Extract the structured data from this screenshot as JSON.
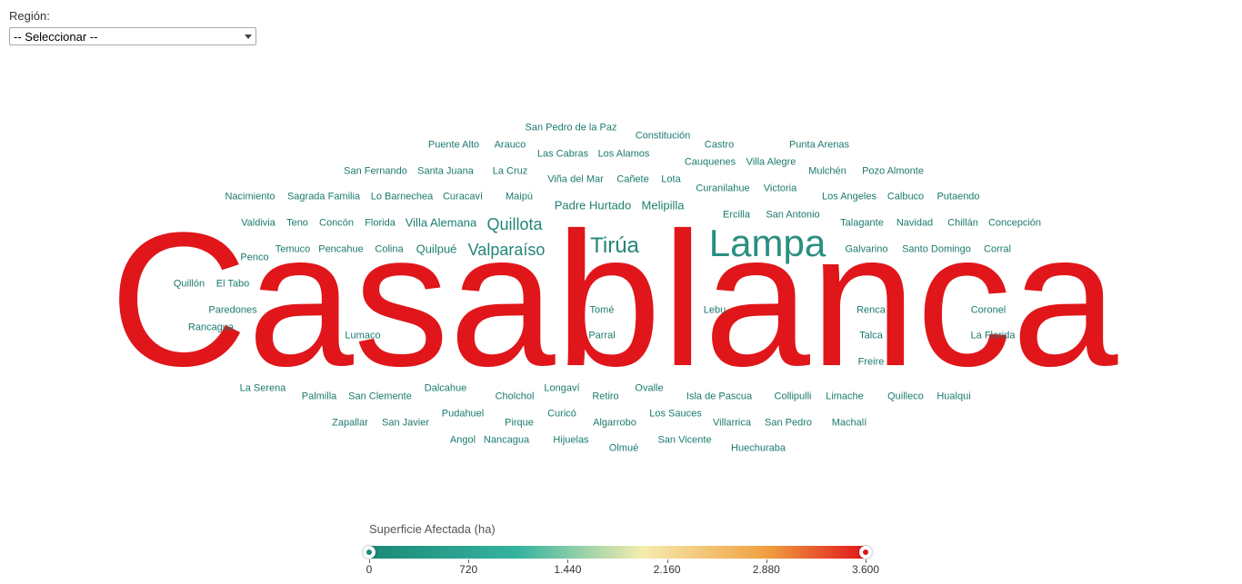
{
  "region_filter": {
    "label": "Región:",
    "selected": "-- Seleccionar --"
  },
  "colors": {
    "low": "#1b8a78",
    "mid_low": "#35b3a0",
    "mid": "#f5ecb0",
    "mid_high": "#f0a040",
    "high": "#e0161a"
  },
  "legend": {
    "title": "Superficie Afectada (ha)",
    "ticks": [
      "0",
      "720",
      "1.440",
      "2.160",
      "2.880",
      "3.600"
    ],
    "range": [
      0,
      3600
    ]
  },
  "words": [
    {
      "text": "Casablanca",
      "color": "#e0161a",
      "size": 210
    },
    {
      "text": "Lampa",
      "color": "#2a8f80",
      "size": 42
    },
    {
      "text": "Tirúa",
      "color": "#238676",
      "size": 24
    },
    {
      "text": "Quillota",
      "color": "#238676",
      "size": 18
    },
    {
      "text": "Valparaíso",
      "color": "#238676",
      "size": 18
    },
    {
      "text": "Padre Hurtado",
      "color": "#1e8070",
      "size": 13
    },
    {
      "text": "Melipilla",
      "color": "#1e8070",
      "size": 13
    },
    {
      "text": "Villa Alemana",
      "color": "#1e8070",
      "size": 13
    },
    {
      "text": "Quilpué",
      "color": "#1e8070",
      "size": 13
    },
    {
      "text": "San Pedro de la Paz",
      "color": "#1b7a6c",
      "size": 11
    },
    {
      "text": "Constitución",
      "color": "#1b7a6c",
      "size": 11
    },
    {
      "text": "Puente Alto",
      "color": "#1b7a6c",
      "size": 11
    },
    {
      "text": "Arauco",
      "color": "#1b7a6c",
      "size": 11
    },
    {
      "text": "Las Cabras",
      "color": "#1b7a6c",
      "size": 11
    },
    {
      "text": "Los Alamos",
      "color": "#1b7a6c",
      "size": 11
    },
    {
      "text": "Castro",
      "color": "#1b7a6c",
      "size": 11
    },
    {
      "text": "Punta Arenas",
      "color": "#1b7a6c",
      "size": 11
    },
    {
      "text": "Cauquenes",
      "color": "#1b7a6c",
      "size": 11
    },
    {
      "text": "Villa Alegre",
      "color": "#1b7a6c",
      "size": 11
    },
    {
      "text": "San Fernando",
      "color": "#1b7a6c",
      "size": 11
    },
    {
      "text": "Santa Juana",
      "color": "#1b7a6c",
      "size": 11
    },
    {
      "text": "La Cruz",
      "color": "#1b7a6c",
      "size": 11
    },
    {
      "text": "Viña del Mar",
      "color": "#1b7a6c",
      "size": 11
    },
    {
      "text": "Cañete",
      "color": "#1b7a6c",
      "size": 11
    },
    {
      "text": "Lota",
      "color": "#1b7a6c",
      "size": 11
    },
    {
      "text": "Mulchén",
      "color": "#1b7a6c",
      "size": 11
    },
    {
      "text": "Pozo Almonte",
      "color": "#1b7a6c",
      "size": 11
    },
    {
      "text": "Curanilahue",
      "color": "#1b7a6c",
      "size": 11
    },
    {
      "text": "Victoria",
      "color": "#1b7a6c",
      "size": 11
    },
    {
      "text": "Nacimiento",
      "color": "#1b7a6c",
      "size": 11
    },
    {
      "text": "Sagrada Familia",
      "color": "#1b7a6c",
      "size": 11
    },
    {
      "text": "Lo Barnechea",
      "color": "#1b7a6c",
      "size": 11
    },
    {
      "text": "Curacaví",
      "color": "#1b7a6c",
      "size": 11
    },
    {
      "text": "Maipú",
      "color": "#1b7a6c",
      "size": 11
    },
    {
      "text": "Los Angeles",
      "color": "#1b7a6c",
      "size": 11
    },
    {
      "text": "Calbuco",
      "color": "#1b7a6c",
      "size": 11
    },
    {
      "text": "Putaendo",
      "color": "#1b7a6c",
      "size": 11
    },
    {
      "text": "Ercilla",
      "color": "#1b7a6c",
      "size": 11
    },
    {
      "text": "San Antonio",
      "color": "#1b7a6c",
      "size": 11
    },
    {
      "text": "Valdivia",
      "color": "#1b7a6c",
      "size": 11
    },
    {
      "text": "Teno",
      "color": "#1b7a6c",
      "size": 11
    },
    {
      "text": "Concón",
      "color": "#1b7a6c",
      "size": 11
    },
    {
      "text": "Florida",
      "color": "#1b7a6c",
      "size": 11
    },
    {
      "text": "Talagante",
      "color": "#1b7a6c",
      "size": 11
    },
    {
      "text": "Navidad",
      "color": "#1b7a6c",
      "size": 11
    },
    {
      "text": "Chillán",
      "color": "#1b7a6c",
      "size": 11
    },
    {
      "text": "Concepción",
      "color": "#1b7a6c",
      "size": 11
    },
    {
      "text": "Temuco",
      "color": "#1b7a6c",
      "size": 11
    },
    {
      "text": "Pencahue",
      "color": "#1b7a6c",
      "size": 11
    },
    {
      "text": "Colina",
      "color": "#1b7a6c",
      "size": 11
    },
    {
      "text": "Galvarino",
      "color": "#1b7a6c",
      "size": 11
    },
    {
      "text": "Santo Domingo",
      "color": "#1b7a6c",
      "size": 11
    },
    {
      "text": "Corral",
      "color": "#1b7a6c",
      "size": 11
    },
    {
      "text": "Penco",
      "color": "#1b7a6c",
      "size": 11
    },
    {
      "text": "Quillón",
      "color": "#1b7a6c",
      "size": 11
    },
    {
      "text": "El Tabo",
      "color": "#1b7a6c",
      "size": 11
    },
    {
      "text": "Paredones",
      "color": "#1b7a6c",
      "size": 11
    },
    {
      "text": "Rancagua",
      "color": "#1b7a6c",
      "size": 11
    },
    {
      "text": "Tomé",
      "color": "#1b7a6c",
      "size": 11
    },
    {
      "text": "Lebu",
      "color": "#1b7a6c",
      "size": 11
    },
    {
      "text": "Renca",
      "color": "#1b7a6c",
      "size": 11
    },
    {
      "text": "Coronel",
      "color": "#1b7a6c",
      "size": 11
    },
    {
      "text": "Lumaco",
      "color": "#1b7a6c",
      "size": 11
    },
    {
      "text": "Parral",
      "color": "#1b7a6c",
      "size": 11
    },
    {
      "text": "Talca",
      "color": "#1b7a6c",
      "size": 11
    },
    {
      "text": "La Florida",
      "color": "#1b7a6c",
      "size": 11
    },
    {
      "text": "Freire",
      "color": "#1b7a6c",
      "size": 11
    },
    {
      "text": "La Serena",
      "color": "#1b7a6c",
      "size": 11
    },
    {
      "text": "Dalcahue",
      "color": "#1b7a6c",
      "size": 11
    },
    {
      "text": "Longaví",
      "color": "#1b7a6c",
      "size": 11
    },
    {
      "text": "Ovalle",
      "color": "#1b7a6c",
      "size": 11
    },
    {
      "text": "Palmilla",
      "color": "#1b7a6c",
      "size": 11
    },
    {
      "text": "San Clemente",
      "color": "#1b7a6c",
      "size": 11
    },
    {
      "text": "Cholchol",
      "color": "#1b7a6c",
      "size": 11
    },
    {
      "text": "Retiro",
      "color": "#1b7a6c",
      "size": 11
    },
    {
      "text": "Isla de Pascua",
      "color": "#1b7a6c",
      "size": 11
    },
    {
      "text": "Collipulli",
      "color": "#1b7a6c",
      "size": 11
    },
    {
      "text": "Limache",
      "color": "#1b7a6c",
      "size": 11
    },
    {
      "text": "Quilleco",
      "color": "#1b7a6c",
      "size": 11
    },
    {
      "text": "Hualqui",
      "color": "#1b7a6c",
      "size": 11
    },
    {
      "text": "Pudahuel",
      "color": "#1b7a6c",
      "size": 11
    },
    {
      "text": "Curicó",
      "color": "#1b7a6c",
      "size": 11
    },
    {
      "text": "Los Sauces",
      "color": "#1b7a6c",
      "size": 11
    },
    {
      "text": "Zapallar",
      "color": "#1b7a6c",
      "size": 11
    },
    {
      "text": "San Javier",
      "color": "#1b7a6c",
      "size": 11
    },
    {
      "text": "Pirque",
      "color": "#1b7a6c",
      "size": 11
    },
    {
      "text": "Algarrobo",
      "color": "#1b7a6c",
      "size": 11
    },
    {
      "text": "Villarrica",
      "color": "#1b7a6c",
      "size": 11
    },
    {
      "text": "San Pedro",
      "color": "#1b7a6c",
      "size": 11
    },
    {
      "text": "Machalí",
      "color": "#1b7a6c",
      "size": 11
    },
    {
      "text": "Angol",
      "color": "#1b7a6c",
      "size": 11
    },
    {
      "text": "Nancagua",
      "color": "#1b7a6c",
      "size": 11
    },
    {
      "text": "Hijuelas",
      "color": "#1b7a6c",
      "size": 11
    },
    {
      "text": "San Vicente",
      "color": "#1b7a6c",
      "size": 11
    },
    {
      "text": "Olmué",
      "color": "#1b7a6c",
      "size": 11
    },
    {
      "text": "Huechuraba",
      "color": "#1b7a6c",
      "size": 11
    }
  ]
}
